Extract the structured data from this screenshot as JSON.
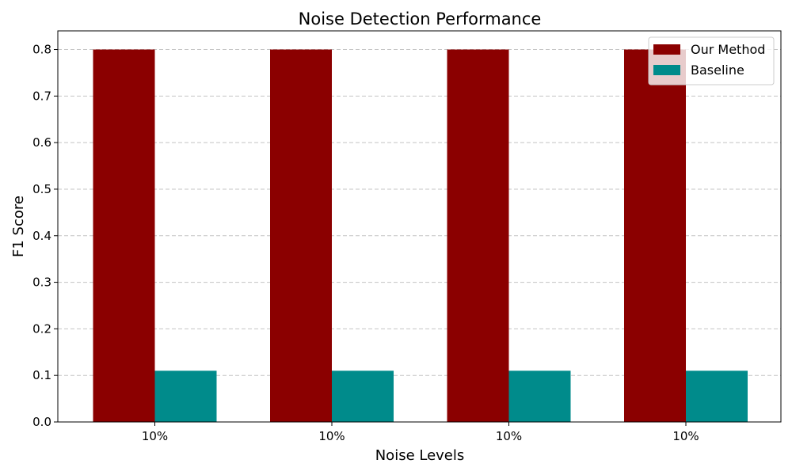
{
  "chart_data": {
    "type": "bar",
    "title": "Noise Detection Performance",
    "xlabel": "Noise Levels",
    "ylabel": "F1 Score",
    "categories": [
      "10%",
      "10%",
      "10%",
      "10%"
    ],
    "series": [
      {
        "name": "Our Method",
        "values": [
          0.8,
          0.8,
          0.8,
          0.8
        ],
        "color": "#8b0000"
      },
      {
        "name": "Baseline",
        "values": [
          0.11,
          0.11,
          0.11,
          0.11
        ],
        "color": "#008b8b"
      }
    ],
    "ylim": [
      0,
      0.84
    ],
    "yticks": [
      "0.0",
      "0.1",
      "0.2",
      "0.3",
      "0.4",
      "0.5",
      "0.6",
      "0.7",
      "0.8"
    ],
    "grid": "y-dashed",
    "legend": "top-right"
  }
}
